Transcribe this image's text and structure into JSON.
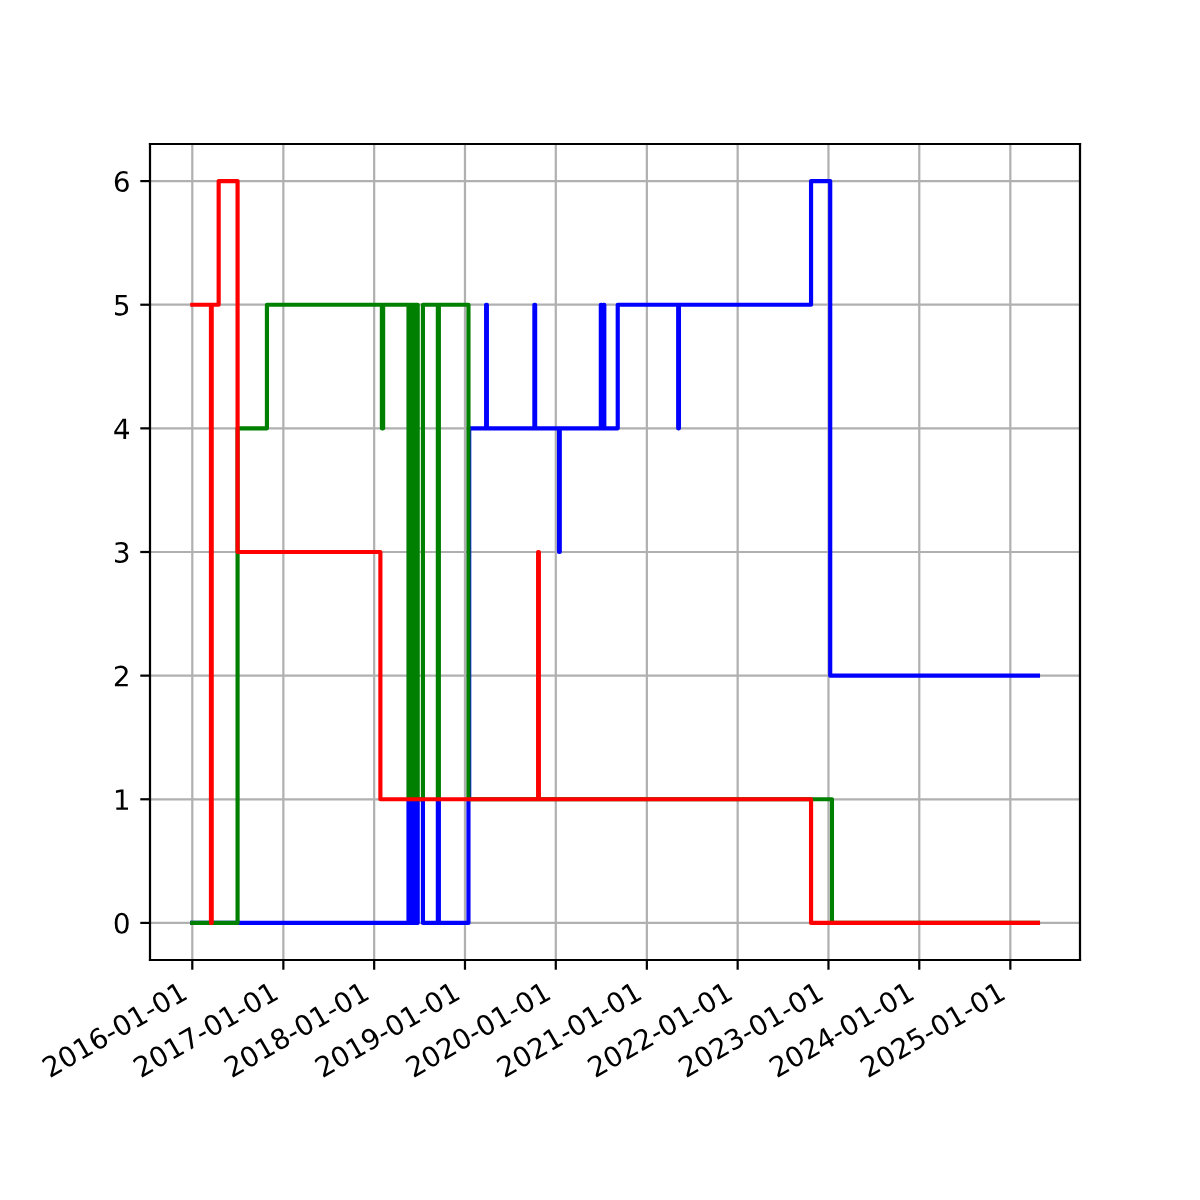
{
  "chart_data": {
    "type": "step",
    "series": [
      {
        "color": "#0000ff",
        "x": [
          "2016-01-01",
          "2018-05-19",
          "2018-05-23",
          "2018-06-01",
          "2018-06-05",
          "2018-06-12",
          "2018-06-16",
          "2018-06-25",
          "2018-07-16",
          "2018-09-14",
          "2018-09-18",
          "2019-01-15",
          "2019-01-18",
          "2019-03-27",
          "2019-03-30",
          "2019-10-07",
          "2019-10-10",
          "2020-01-14",
          "2020-01-17",
          "2020-06-30",
          "2020-07-03",
          "2020-07-11",
          "2020-07-14",
          "2020-09-06",
          "2021-05-07",
          "2021-05-10",
          "2022-10-23",
          "2023-01-08",
          "2025-04-22"
        ],
        "values": [
          0,
          1,
          0,
          1,
          0,
          1,
          0,
          1,
          0,
          1,
          0,
          1,
          4,
          5,
          4,
          5,
          4,
          3,
          4,
          5,
          4,
          5,
          4,
          5,
          4,
          5,
          6,
          2,
          2
        ]
      },
      {
        "color": "#008000",
        "x": [
          "2016-01-01",
          "2016-07-01",
          "2016-10-27",
          "2018-02-01",
          "2018-02-06",
          "2018-05-19",
          "2018-05-23",
          "2018-06-01",
          "2018-06-05",
          "2018-06-12",
          "2018-06-16",
          "2018-06-25",
          "2018-07-16",
          "2018-09-14",
          "2018-09-18",
          "2019-01-15",
          "2023-01-15",
          "2025-04-22"
        ],
        "values": [
          0,
          4,
          5,
          4,
          5,
          1,
          5,
          1,
          5,
          1,
          5,
          1,
          5,
          1,
          5,
          1,
          0,
          0
        ]
      },
      {
        "color": "#ff0000",
        "x": [
          "2016-01-01",
          "2016-03-16",
          "2016-03-19",
          "2016-04-16",
          "2016-07-01",
          "2018-01-26",
          "2019-10-22",
          "2019-10-25",
          "2022-10-23",
          "2025-04-22"
        ],
        "values": [
          5,
          0,
          5,
          6,
          3,
          1,
          3,
          1,
          0,
          0
        ]
      }
    ],
    "xlim": [
      "2015-07-15",
      "2025-10-08"
    ],
    "xticks": [
      "2016-01-01",
      "2017-01-01",
      "2018-01-01",
      "2019-01-01",
      "2020-01-01",
      "2021-01-01",
      "2022-01-01",
      "2023-01-01",
      "2024-01-01",
      "2025-01-01"
    ],
    "ylim": [
      -0.3,
      6.3
    ],
    "yticks": [
      0,
      1,
      2,
      3,
      4,
      5,
      6
    ],
    "grid": true
  }
}
